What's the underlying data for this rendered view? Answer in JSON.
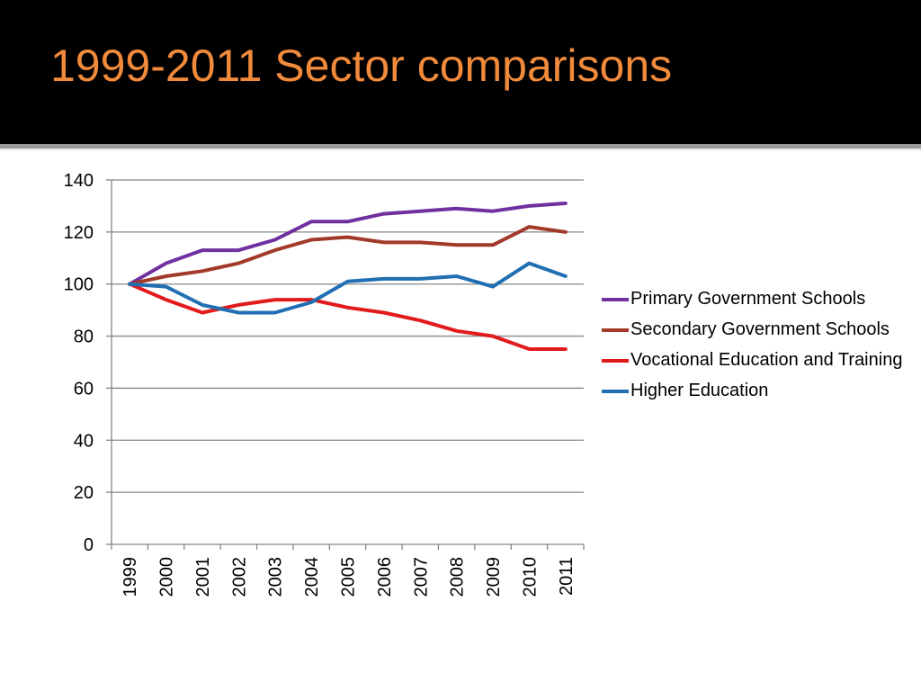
{
  "slide": {
    "title": "1999-2011 Sector comparisons",
    "title_color": "#f28a3c",
    "background_top": "#000000"
  },
  "chart_data": {
    "type": "line",
    "title": "",
    "xlabel": "",
    "ylabel": "",
    "categories": [
      "1999",
      "2000",
      "2001",
      "2002",
      "2003",
      "2004",
      "2005",
      "2006",
      "2007",
      "2008",
      "2009",
      "2010",
      "2011"
    ],
    "ylim": [
      0,
      140
    ],
    "yticks": [
      0,
      20,
      40,
      60,
      80,
      100,
      120,
      140
    ],
    "grid": true,
    "legend_position": "right",
    "series": [
      {
        "name": "Primary Government Schools",
        "color": "#7030a0",
        "values": [
          100,
          108,
          113,
          113,
          117,
          124,
          124,
          127,
          128,
          129,
          128,
          130,
          131
        ]
      },
      {
        "name": "Secondary Government Schools",
        "color": "#a23a2a",
        "values": [
          100,
          103,
          105,
          108,
          113,
          117,
          118,
          116,
          116,
          115,
          115,
          122,
          120
        ]
      },
      {
        "name": "Vocational Education and Training",
        "color": "#e31a1c",
        "values": [
          100,
          94,
          89,
          92,
          94,
          94,
          91,
          89,
          86,
          82,
          80,
          75,
          75
        ]
      },
      {
        "name": "Higher Education",
        "color": "#1f6fb2",
        "values": [
          100,
          99,
          92,
          89,
          89,
          93,
          101,
          102,
          102,
          103,
          99,
          108,
          103
        ]
      }
    ]
  }
}
